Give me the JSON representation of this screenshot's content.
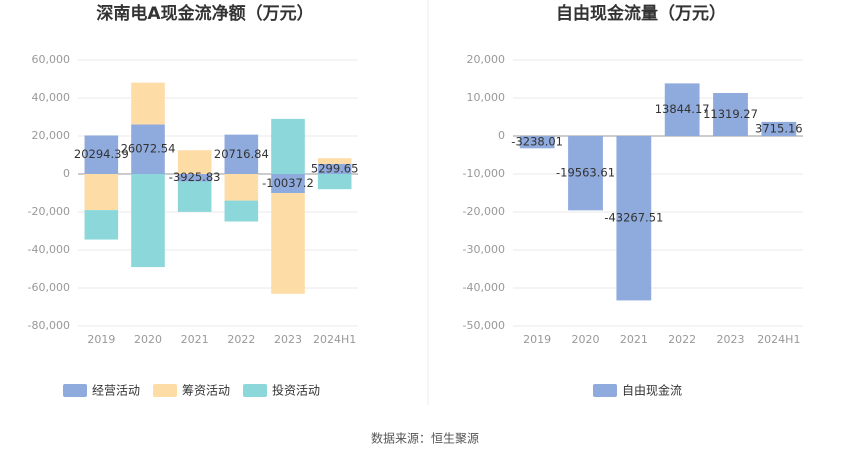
{
  "chart_data": [
    {
      "type": "bar",
      "stacked": true,
      "title": "深南电A现金流净额（万元）",
      "categories": [
        "2019",
        "2020",
        "2021",
        "2022",
        "2023",
        "2024H1"
      ],
      "series": [
        {
          "name": "经营活动",
          "color": "#8faadc",
          "data_labels": true,
          "values": [
            20294.39,
            26072.54,
            -3925.83,
            20716.84,
            -10037.2,
            5299.65
          ]
        },
        {
          "name": "筹资活动",
          "color": "#fedca6",
          "values": [
            -19000,
            22000,
            12500,
            -14000,
            -53000,
            3000
          ]
        },
        {
          "name": "投资活动",
          "color": "#8cd7da",
          "values": [
            -15500,
            -49000,
            -16000,
            -11000,
            29000,
            -8000
          ]
        }
      ],
      "ylim": [
        -80000,
        60000
      ],
      "yticks": [
        {
          "value": -80000,
          "label": "-80,000"
        },
        {
          "value": -60000,
          "label": "-60,000"
        },
        {
          "value": -40000,
          "label": "-40,000"
        },
        {
          "value": -20000,
          "label": "-20,000"
        },
        0,
        {
          "value": 20000,
          "label": "20,000"
        },
        {
          "value": 40000,
          "label": "40,000"
        },
        {
          "value": 60000,
          "label": "60,000"
        }
      ],
      "grid": true
    },
    {
      "type": "bar",
      "title": "自由现金流量（万元）",
      "categories": [
        "2019",
        "2020",
        "2021",
        "2022",
        "2023",
        "2024H1"
      ],
      "series": [
        {
          "name": "自由现金流",
          "color": "#8faadc",
          "data_labels": true,
          "values": [
            -3238.01,
            -19563.61,
            -43267.51,
            13844.17,
            11319.27,
            3715.16
          ]
        }
      ],
      "ylim": [
        -50000,
        20000
      ],
      "yticks": [
        {
          "value": -50000,
          "label": "-50,000"
        },
        {
          "value": -40000,
          "label": "-40,000"
        },
        {
          "value": -30000,
          "label": "-30,000"
        },
        {
          "value": -20000,
          "label": "-20,000"
        },
        {
          "value": -10000,
          "label": "-10,000"
        },
        0,
        {
          "value": 10000,
          "label": "10,000"
        },
        {
          "value": 20000,
          "label": "20,000"
        }
      ],
      "grid": true
    }
  ],
  "source": "数据来源：恒生聚源"
}
